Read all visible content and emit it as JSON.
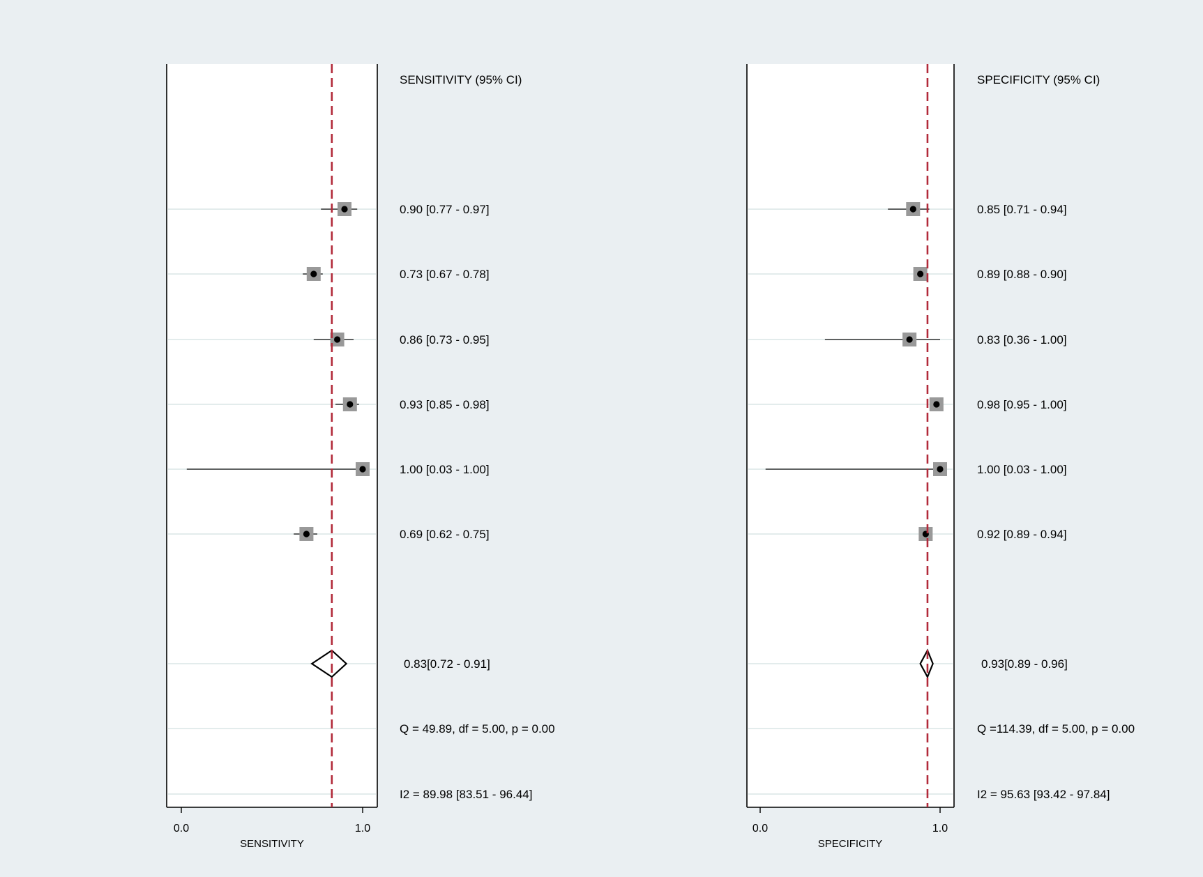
{
  "colors": {
    "background": "#eaeff2",
    "plot_background": "#ffffff",
    "reference_line": "#b22a3a",
    "marker_box": "#999999",
    "marker_dot": "#000000",
    "row_rule": "#e3ecec"
  },
  "chart_data": [
    {
      "type": "forest",
      "panel": "sensitivity",
      "column_header": "SENSITIVITY (95% CI)",
      "xlabel": "SENSITIVITY",
      "xlim": [
        0,
        1
      ],
      "xticks": [
        "0.0",
        "1.0"
      ],
      "xtick_values": [
        0,
        1
      ],
      "pooled_reference": 0.83,
      "studies": [
        {
          "estimate": 0.9,
          "lower": 0.77,
          "upper": 0.97,
          "label": "0.90 [0.77 - 0.97]"
        },
        {
          "estimate": 0.73,
          "lower": 0.67,
          "upper": 0.78,
          "label": "0.73 [0.67 - 0.78]"
        },
        {
          "estimate": 0.86,
          "lower": 0.73,
          "upper": 0.95,
          "label": "0.86 [0.73 - 0.95]"
        },
        {
          "estimate": 0.93,
          "lower": 0.85,
          "upper": 0.98,
          "label": "0.93 [0.85 - 0.98]"
        },
        {
          "estimate": 1.0,
          "lower": 0.03,
          "upper": 1.0,
          "label": "1.00 [0.03 - 1.00]"
        },
        {
          "estimate": 0.69,
          "lower": 0.62,
          "upper": 0.75,
          "label": "0.69 [0.62 - 0.75]"
        }
      ],
      "pooled": {
        "estimate": 0.83,
        "lower": 0.72,
        "upper": 0.91,
        "label": "0.83[0.72 - 0.91]"
      },
      "heterogeneity_q": "Q = 49.89, df = 5.00, p =  0.00",
      "heterogeneity_i2": "I2 = 89.98 [83.51 - 96.44]"
    },
    {
      "type": "forest",
      "panel": "specificity",
      "column_header": "SPECIFICITY (95% CI)",
      "xlabel": "SPECIFICITY",
      "xlim": [
        0,
        1
      ],
      "xticks": [
        "0.0",
        "1.0"
      ],
      "xtick_values": [
        0,
        1
      ],
      "pooled_reference": 0.93,
      "studies": [
        {
          "estimate": 0.85,
          "lower": 0.71,
          "upper": 0.94,
          "label": "0.85 [0.71 - 0.94]"
        },
        {
          "estimate": 0.89,
          "lower": 0.88,
          "upper": 0.9,
          "label": "0.89 [0.88 - 0.90]"
        },
        {
          "estimate": 0.83,
          "lower": 0.36,
          "upper": 1.0,
          "label": "0.83 [0.36 - 1.00]"
        },
        {
          "estimate": 0.98,
          "lower": 0.95,
          "upper": 1.0,
          "label": "0.98 [0.95 - 1.00]"
        },
        {
          "estimate": 1.0,
          "lower": 0.03,
          "upper": 1.0,
          "label": "1.00 [0.03 - 1.00]"
        },
        {
          "estimate": 0.92,
          "lower": 0.89,
          "upper": 0.94,
          "label": "0.92 [0.89 - 0.94]"
        }
      ],
      "pooled": {
        "estimate": 0.93,
        "lower": 0.89,
        "upper": 0.96,
        "label": "0.93[0.89 - 0.96]"
      },
      "heterogeneity_q": "Q =114.39, df = 5.00, p =  0.00",
      "heterogeneity_i2": "I2 = 95.63 [93.42 - 97.84]"
    }
  ]
}
